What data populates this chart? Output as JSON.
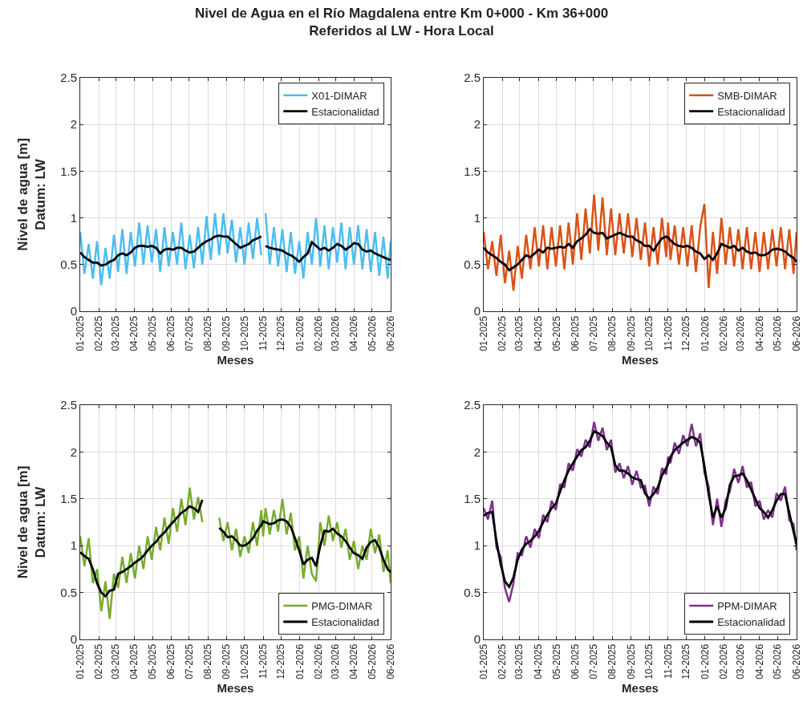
{
  "chart_data": [
    {
      "type": "line",
      "title": "Nivel de Agua en el Río Magdalena entre Km 0+000 - Km 36+000",
      "subtitle": "Referidos al LW - Hora Local",
      "xlabel": "Meses",
      "ylabel": "Nivel de agua [m]\nDatum: LW",
      "legend": "top right",
      "grid": true,
      "line_style": "solid",
      "xlim": [
        "2025-01-01",
        "2026-06-01"
      ],
      "ylim": [
        0,
        2.5
      ],
      "yticks": [
        0,
        0.5,
        1,
        1.5,
        2,
        2.5
      ],
      "xticks": [
        {
          "value": "2025-01-01",
          "label": "01-2025"
        },
        {
          "value": "2025-02-01",
          "label": "02-2025"
        },
        {
          "value": "2025-03-01",
          "label": "03-2025"
        },
        {
          "value": "2025-04-01",
          "label": "04-2025"
        },
        {
          "value": "2025-05-01",
          "label": "05-2025"
        },
        {
          "value": "2025-06-01",
          "label": "06-2025"
        },
        {
          "value": "2025-07-01",
          "label": "07-2025"
        },
        {
          "value": "2025-08-01",
          "label": "08-2025"
        },
        {
          "value": "2025-09-01",
          "label": "09-2025"
        },
        {
          "value": "2025-10-01",
          "label": "10-2025"
        },
        {
          "value": "2025-11-01",
          "label": "11-2025"
        },
        {
          "value": "2025-12-01",
          "label": "12-2025"
        },
        {
          "value": "2026-01-01",
          "label": "01-2026"
        },
        {
          "value": "2026-02-01",
          "label": "02-2026"
        },
        {
          "value": "2026-03-01",
          "label": "03-2026"
        },
        {
          "value": "2026-04-01",
          "label": "04-2026"
        },
        {
          "value": "2026-05-01",
          "label": "05-2026"
        },
        {
          "value": "2026-06-01",
          "label": "06-2026"
        }
      ],
      "x": [
        "2025-01-01",
        "2025-01-08",
        "2025-01-15",
        "2025-01-22",
        "2025-01-29",
        "2025-02-05",
        "2025-02-12",
        "2025-02-19",
        "2025-02-26",
        "2025-03-05",
        "2025-03-12",
        "2025-03-19",
        "2025-03-26",
        "2025-04-02",
        "2025-04-09",
        "2025-04-16",
        "2025-04-23",
        "2025-04-30",
        "2025-05-07",
        "2025-05-14",
        "2025-05-21",
        "2025-05-28",
        "2025-06-04",
        "2025-06-11",
        "2025-06-18",
        "2025-06-25",
        "2025-07-02",
        "2025-07-09",
        "2025-07-16",
        "2025-07-23",
        "2025-07-30",
        "2025-08-06",
        "2025-08-13",
        "2025-08-20",
        "2025-08-27",
        "2025-09-03",
        "2025-09-10",
        "2025-09-17",
        "2025-09-24",
        "2025-10-01",
        "2025-10-08",
        "2025-10-15",
        "2025-10-22",
        "2025-10-29",
        "2025-11-01",
        "2025-11-05",
        "2025-11-12",
        "2025-11-19",
        "2025-11-26",
        "2025-12-03",
        "2025-12-10",
        "2025-12-17",
        "2025-12-24",
        "2025-12-31",
        "2026-01-07",
        "2026-01-14",
        "2026-01-21",
        "2026-01-28",
        "2026-02-04",
        "2026-02-11",
        "2026-02-18",
        "2026-02-25",
        "2026-03-04",
        "2026-03-11",
        "2026-03-18",
        "2026-03-25",
        "2026-04-01",
        "2026-04-08",
        "2026-04-15",
        "2026-04-22",
        "2026-04-29",
        "2026-05-06",
        "2026-05-13",
        "2026-05-20",
        "2026-05-27",
        "2026-06-01"
      ],
      "series": [
        {
          "name": "X01-DIMAR",
          "color": "#4dbeee",
          "values": [
            0.85,
            0.4,
            0.72,
            0.35,
            0.75,
            0.28,
            0.68,
            0.35,
            0.82,
            0.42,
            0.88,
            0.4,
            0.85,
            0.48,
            0.95,
            0.5,
            0.92,
            0.52,
            0.88,
            0.42,
            0.9,
            0.48,
            0.85,
            0.5,
            0.95,
            0.45,
            0.82,
            0.46,
            0.9,
            0.5,
            1.02,
            0.55,
            1.05,
            0.6,
            1.05,
            0.62,
            0.98,
            0.52,
            0.9,
            0.5,
            0.95,
            0.56,
            1.0,
            0.6,
            null,
            1.05,
            0.5,
            0.9,
            0.48,
            0.88,
            0.42,
            0.85,
            0.4,
            0.75,
            0.35,
            0.85,
            0.5,
            1.0,
            0.48,
            0.92,
            0.45,
            0.9,
            0.52,
            0.95,
            0.45,
            0.9,
            0.5,
            0.92,
            0.45,
            0.88,
            0.42,
            0.85,
            0.38,
            0.8,
            0.35,
            0.75
          ]
        },
        {
          "name": "Estacionalidad",
          "color": "#000000",
          "values": [
            0.63,
            0.58,
            0.55,
            0.52,
            0.52,
            0.49,
            0.5,
            0.53,
            0.55,
            0.6,
            0.62,
            0.6,
            0.63,
            0.68,
            0.7,
            0.7,
            0.69,
            0.7,
            0.68,
            0.62,
            0.66,
            0.67,
            0.66,
            0.68,
            0.68,
            0.65,
            0.63,
            0.64,
            0.68,
            0.72,
            0.75,
            0.77,
            0.8,
            0.81,
            0.8,
            0.8,
            0.76,
            0.72,
            0.68,
            0.7,
            0.72,
            0.76,
            0.78,
            0.8,
            null,
            0.7,
            0.68,
            0.67,
            0.66,
            0.65,
            0.62,
            0.6,
            0.57,
            0.53,
            0.58,
            0.62,
            0.74,
            0.7,
            0.66,
            0.68,
            0.65,
            0.68,
            0.72,
            0.7,
            0.66,
            0.69,
            0.73,
            0.72,
            0.66,
            0.64,
            0.65,
            0.62,
            0.6,
            0.58,
            0.56,
            0.55
          ]
        }
      ]
    },
    {
      "type": "line",
      "xlabel": "Meses",
      "legend": "top right",
      "grid": true,
      "line_style": "solid",
      "xlim": [
        "2025-01-01",
        "2026-06-01"
      ],
      "ylim": [
        0,
        2.5
      ],
      "yticks": [
        0,
        0.5,
        1,
        1.5,
        2,
        2.5
      ],
      "xticks": [
        {
          "value": "2025-01-01",
          "label": "01-2025"
        },
        {
          "value": "2025-02-01",
          "label": "02-2025"
        },
        {
          "value": "2025-03-01",
          "label": "03-2025"
        },
        {
          "value": "2025-04-01",
          "label": "04-2025"
        },
        {
          "value": "2025-05-01",
          "label": "05-2025"
        },
        {
          "value": "2025-06-01",
          "label": "06-2025"
        },
        {
          "value": "2025-07-01",
          "label": "07-2025"
        },
        {
          "value": "2025-08-01",
          "label": "08-2025"
        },
        {
          "value": "2025-09-01",
          "label": "09-2025"
        },
        {
          "value": "2025-10-01",
          "label": "10-2025"
        },
        {
          "value": "2025-11-01",
          "label": "11-2025"
        },
        {
          "value": "2025-12-01",
          "label": "12-2025"
        },
        {
          "value": "2026-01-01",
          "label": "01-2026"
        },
        {
          "value": "2026-02-01",
          "label": "02-2026"
        },
        {
          "value": "2026-03-01",
          "label": "03-2026"
        },
        {
          "value": "2026-04-01",
          "label": "04-2026"
        },
        {
          "value": "2026-05-01",
          "label": "05-2026"
        },
        {
          "value": "2026-06-01",
          "label": "06-2026"
        }
      ],
      "x": [
        "2025-01-01",
        "2025-01-08",
        "2025-01-15",
        "2025-01-22",
        "2025-01-29",
        "2025-02-05",
        "2025-02-12",
        "2025-02-19",
        "2025-02-26",
        "2025-03-05",
        "2025-03-12",
        "2025-03-19",
        "2025-03-26",
        "2025-04-02",
        "2025-04-09",
        "2025-04-16",
        "2025-04-23",
        "2025-04-30",
        "2025-05-07",
        "2025-05-14",
        "2025-05-21",
        "2025-05-28",
        "2025-06-04",
        "2025-06-11",
        "2025-06-18",
        "2025-06-25",
        "2025-07-02",
        "2025-07-09",
        "2025-07-16",
        "2025-07-23",
        "2025-07-30",
        "2025-08-06",
        "2025-08-13",
        "2025-08-20",
        "2025-08-27",
        "2025-09-03",
        "2025-09-10",
        "2025-09-17",
        "2025-09-24",
        "2025-10-01",
        "2025-10-08",
        "2025-10-15",
        "2025-10-22",
        "2025-10-29",
        "2025-11-01",
        "2025-11-05",
        "2025-11-12",
        "2025-11-19",
        "2025-11-26",
        "2025-12-03",
        "2025-12-10",
        "2025-12-17",
        "2025-12-24",
        "2025-12-31",
        "2026-01-07",
        "2026-01-14",
        "2026-01-21",
        "2026-01-28",
        "2026-02-04",
        "2026-02-11",
        "2026-02-18",
        "2026-02-25",
        "2026-03-04",
        "2026-03-11",
        "2026-03-18",
        "2026-03-25",
        "2026-04-01",
        "2026-04-08",
        "2026-04-15",
        "2026-04-22",
        "2026-04-29",
        "2026-05-06",
        "2026-05-13",
        "2026-05-20",
        "2026-05-27",
        "2026-06-01"
      ],
      "series": [
        {
          "name": "SMB-DIMAR",
          "color": "#d95319",
          "values": [
            0.85,
            0.45,
            0.75,
            0.38,
            0.82,
            0.3,
            0.65,
            0.22,
            0.7,
            0.35,
            0.82,
            0.45,
            0.9,
            0.48,
            0.92,
            0.45,
            0.9,
            0.48,
            0.92,
            0.45,
            0.95,
            0.5,
            1.05,
            0.55,
            1.1,
            0.62,
            1.25,
            0.65,
            1.22,
            0.6,
            1.1,
            0.6,
            1.05,
            0.62,
            1.05,
            0.58,
            1.0,
            0.55,
            0.95,
            0.48,
            0.9,
            0.5,
            1.0,
            0.58,
            0.95,
            0.55,
            0.92,
            0.5,
            0.9,
            0.48,
            0.92,
            0.42,
            0.9,
            1.15,
            0.25,
            0.85,
            0.4,
            1.0,
            0.5,
            0.9,
            0.48,
            0.88,
            0.45,
            0.9,
            0.45,
            0.85,
            0.42,
            0.85,
            0.45,
            0.88,
            0.48,
            0.9,
            0.45,
            0.88,
            0.4,
            0.85
          ]
        },
        {
          "name": "Estacionalidad",
          "color": "#000000",
          "values": [
            0.68,
            0.63,
            0.6,
            0.57,
            0.53,
            0.5,
            0.44,
            0.47,
            0.5,
            0.55,
            0.6,
            0.58,
            0.62,
            0.66,
            0.63,
            0.68,
            0.67,
            0.68,
            0.69,
            0.68,
            0.72,
            0.68,
            0.75,
            0.78,
            0.82,
            0.88,
            0.84,
            0.83,
            0.84,
            0.78,
            0.8,
            0.82,
            0.84,
            0.82,
            0.8,
            0.8,
            0.76,
            0.74,
            0.7,
            0.7,
            0.65,
            0.72,
            0.78,
            0.8,
            0.79,
            0.76,
            0.72,
            0.7,
            0.69,
            0.7,
            0.68,
            0.64,
            0.62,
            0.56,
            0.6,
            0.55,
            0.62,
            0.72,
            0.7,
            0.68,
            0.7,
            0.65,
            0.68,
            0.64,
            0.62,
            0.63,
            0.6,
            0.6,
            0.62,
            0.66,
            0.67,
            0.66,
            0.64,
            0.6,
            0.57,
            0.53
          ]
        }
      ]
    },
    {
      "type": "line",
      "xlabel": "Meses",
      "ylabel": "Nivel de agua [m]\nDatum: LW",
      "legend": "bottom right",
      "grid": true,
      "line_style": "solid",
      "xlim": [
        "2025-01-01",
        "2026-06-01"
      ],
      "ylim": [
        0,
        2.5
      ],
      "yticks": [
        0,
        0.5,
        1,
        1.5,
        2,
        2.5
      ],
      "xticks": [
        {
          "value": "2025-01-01",
          "label": "01-2025"
        },
        {
          "value": "2025-02-01",
          "label": "02-2025"
        },
        {
          "value": "2025-03-01",
          "label": "03-2025"
        },
        {
          "value": "2025-04-01",
          "label": "04-2025"
        },
        {
          "value": "2025-05-01",
          "label": "05-2025"
        },
        {
          "value": "2025-06-01",
          "label": "06-2025"
        },
        {
          "value": "2025-07-01",
          "label": "07-2025"
        },
        {
          "value": "2025-08-01",
          "label": "08-2025"
        },
        {
          "value": "2025-09-01",
          "label": "09-2025"
        },
        {
          "value": "2025-10-01",
          "label": "10-2025"
        },
        {
          "value": "2025-11-01",
          "label": "11-2025"
        },
        {
          "value": "2025-12-01",
          "label": "12-2025"
        },
        {
          "value": "2026-01-01",
          "label": "01-2026"
        },
        {
          "value": "2026-02-01",
          "label": "02-2026"
        },
        {
          "value": "2026-03-01",
          "label": "03-2026"
        },
        {
          "value": "2026-04-01",
          "label": "04-2026"
        },
        {
          "value": "2026-05-01",
          "label": "05-2026"
        },
        {
          "value": "2026-06-01",
          "label": "06-2026"
        }
      ],
      "x": [
        "2025-01-01",
        "2025-01-08",
        "2025-01-15",
        "2025-01-22",
        "2025-01-29",
        "2025-02-05",
        "2025-02-12",
        "2025-02-19",
        "2025-02-26",
        "2025-03-05",
        "2025-03-12",
        "2025-03-19",
        "2025-03-26",
        "2025-04-02",
        "2025-04-09",
        "2025-04-16",
        "2025-04-23",
        "2025-04-30",
        "2025-05-07",
        "2025-05-14",
        "2025-05-21",
        "2025-05-28",
        "2025-06-04",
        "2025-06-11",
        "2025-06-18",
        "2025-06-25",
        "2025-07-02",
        "2025-07-09",
        "2025-07-16",
        "2025-07-23",
        "2025-07-30",
        "2025-08-06",
        "2025-08-13",
        "2025-08-20",
        "2025-08-27",
        "2025-09-03",
        "2025-09-10",
        "2025-09-17",
        "2025-09-24",
        "2025-10-01",
        "2025-10-08",
        "2025-10-15",
        "2025-10-22",
        "2025-10-29",
        "2025-11-01",
        "2025-11-05",
        "2025-11-12",
        "2025-11-19",
        "2025-11-26",
        "2025-12-03",
        "2025-12-10",
        "2025-12-17",
        "2025-12-24",
        "2025-12-31",
        "2026-01-07",
        "2026-01-14",
        "2026-01-21",
        "2026-01-28",
        "2026-02-04",
        "2026-02-11",
        "2026-02-18",
        "2026-02-25",
        "2026-03-04",
        "2026-03-11",
        "2026-03-18",
        "2026-03-25",
        "2026-04-01",
        "2026-04-08",
        "2026-04-15",
        "2026-04-22",
        "2026-04-29",
        "2026-05-06",
        "2026-05-13",
        "2026-05-20",
        "2026-05-27",
        "2026-06-01"
      ],
      "series": [
        {
          "name": "PMG-DIMAR",
          "color": "#77ac30",
          "values": [
            1.1,
            0.78,
            1.08,
            0.6,
            0.75,
            0.3,
            0.62,
            0.22,
            0.7,
            0.55,
            0.88,
            0.6,
            0.92,
            0.65,
            1.0,
            0.75,
            1.1,
            0.85,
            1.2,
            0.95,
            1.3,
            1.02,
            1.4,
            1.15,
            1.5,
            1.22,
            1.62,
            1.28,
            1.52,
            1.25,
            null,
            null,
            null,
            1.3,
            1.05,
            1.25,
            0.95,
            1.18,
            0.88,
            1.1,
            0.92,
            1.25,
            1.0,
            1.38,
            1.1,
            1.4,
            1.12,
            1.38,
            1.15,
            1.5,
            1.12,
            1.35,
            0.95,
            1.1,
            0.65,
            1.0,
            0.7,
            0.62,
            1.25,
            1.0,
            1.32,
            1.05,
            1.25,
            0.98,
            1.18,
            0.85,
            1.05,
            0.75,
            1.0,
            0.85,
            1.18,
            0.92,
            1.12,
            0.72,
            0.95,
            0.6
          ]
        },
        {
          "name": "Estacionalidad",
          "color": "#000000",
          "values": [
            0.93,
            0.89,
            0.86,
            0.75,
            0.6,
            0.5,
            0.46,
            0.52,
            0.53,
            0.7,
            0.72,
            0.75,
            0.78,
            0.82,
            0.85,
            0.89,
            0.95,
            1.0,
            1.04,
            1.1,
            1.14,
            1.2,
            1.25,
            1.3,
            1.35,
            1.38,
            1.42,
            1.4,
            1.36,
            1.49,
            null,
            null,
            null,
            1.19,
            1.15,
            1.09,
            1.1,
            1.06,
            1.0,
            1.0,
            1.03,
            1.08,
            1.16,
            1.22,
            1.26,
            1.25,
            1.23,
            1.24,
            1.27,
            1.28,
            1.26,
            1.2,
            1.08,
            0.95,
            0.8,
            0.85,
            0.87,
            0.78,
            1.0,
            1.16,
            1.15,
            1.18,
            1.13,
            1.1,
            1.05,
            0.98,
            0.92,
            0.9,
            0.86,
            0.98,
            1.04,
            1.06,
            0.98,
            0.85,
            0.75,
            0.72
          ]
        }
      ]
    },
    {
      "type": "line",
      "xlabel": "Meses",
      "legend": "bottom right",
      "grid": true,
      "line_style": "solid",
      "xlim": [
        "2025-01-01",
        "2026-06-01"
      ],
      "ylim": [
        0,
        2.5
      ],
      "yticks": [
        0,
        0.5,
        1,
        1.5,
        2,
        2.5
      ],
      "xticks": [
        {
          "value": "2025-01-01",
          "label": "01-2025"
        },
        {
          "value": "2025-02-01",
          "label": "02-2025"
        },
        {
          "value": "2025-03-01",
          "label": "03-2025"
        },
        {
          "value": "2025-04-01",
          "label": "04-2025"
        },
        {
          "value": "2025-05-01",
          "label": "05-2025"
        },
        {
          "value": "2025-06-01",
          "label": "06-2025"
        },
        {
          "value": "2025-07-01",
          "label": "07-2025"
        },
        {
          "value": "2025-08-01",
          "label": "08-2025"
        },
        {
          "value": "2025-09-01",
          "label": "09-2025"
        },
        {
          "value": "2025-10-01",
          "label": "10-2025"
        },
        {
          "value": "2025-11-01",
          "label": "11-2025"
        },
        {
          "value": "2025-12-01",
          "label": "12-2025"
        },
        {
          "value": "2026-01-01",
          "label": "01-2026"
        },
        {
          "value": "2026-02-01",
          "label": "02-2026"
        },
        {
          "value": "2026-03-01",
          "label": "03-2026"
        },
        {
          "value": "2026-04-01",
          "label": "04-2026"
        },
        {
          "value": "2026-05-01",
          "label": "05-2026"
        },
        {
          "value": "2026-06-01",
          "label": "06-2026"
        }
      ],
      "x": [
        "2025-01-01",
        "2025-01-08",
        "2025-01-15",
        "2025-01-22",
        "2025-01-29",
        "2025-02-05",
        "2025-02-12",
        "2025-02-19",
        "2025-02-26",
        "2025-03-05",
        "2025-03-12",
        "2025-03-19",
        "2025-03-26",
        "2025-04-02",
        "2025-04-09",
        "2025-04-16",
        "2025-04-23",
        "2025-04-30",
        "2025-05-07",
        "2025-05-14",
        "2025-05-21",
        "2025-05-28",
        "2025-06-04",
        "2025-06-11",
        "2025-06-18",
        "2025-06-25",
        "2025-07-02",
        "2025-07-09",
        "2025-07-16",
        "2025-07-23",
        "2025-07-30",
        "2025-08-06",
        "2025-08-13",
        "2025-08-20",
        "2025-08-27",
        "2025-09-03",
        "2025-09-10",
        "2025-09-17",
        "2025-09-24",
        "2025-10-01",
        "2025-10-08",
        "2025-10-15",
        "2025-10-22",
        "2025-10-29",
        "2025-11-01",
        "2025-11-05",
        "2025-11-12",
        "2025-11-19",
        "2025-11-26",
        "2025-12-03",
        "2025-12-10",
        "2025-12-17",
        "2025-12-24",
        "2025-12-31",
        "2026-01-07",
        "2026-01-14",
        "2026-01-21",
        "2026-01-28",
        "2026-02-04",
        "2026-02-11",
        "2026-02-18",
        "2026-02-25",
        "2026-03-04",
        "2026-03-11",
        "2026-03-18",
        "2026-03-25",
        "2026-04-01",
        "2026-04-08",
        "2026-04-15",
        "2026-04-22",
        "2026-04-29",
        "2026-05-06",
        "2026-05-13",
        "2026-05-20",
        "2026-05-27",
        "2026-06-01"
      ],
      "series": [
        {
          "name": "PPM-DIMAR",
          "color": "#7e2f8e",
          "values": [
            1.4,
            1.28,
            1.48,
            0.98,
            0.88,
            0.55,
            0.4,
            0.6,
            0.92,
            0.9,
            1.1,
            0.98,
            1.18,
            1.08,
            1.33,
            1.25,
            1.48,
            1.38,
            1.66,
            1.62,
            1.88,
            1.8,
            2.03,
            1.95,
            2.13,
            2.05,
            2.32,
            2.12,
            2.26,
            2.02,
            2.13,
            1.78,
            1.88,
            1.72,
            1.85,
            1.65,
            1.8,
            1.62,
            1.64,
            1.42,
            1.63,
            1.55,
            1.83,
            1.76,
            1.95,
            1.88,
            2.1,
            1.98,
            2.18,
            2.06,
            2.3,
            2.06,
            2.2,
            1.78,
            1.63,
            1.22,
            1.5,
            1.2,
            1.48,
            1.58,
            1.82,
            1.67,
            1.85,
            1.62,
            1.68,
            1.42,
            1.48,
            1.28,
            1.38,
            1.3,
            1.56,
            1.48,
            1.63,
            1.27,
            1.23,
            0.95
          ]
        },
        {
          "name": "Estacionalidad",
          "color": "#000000",
          "values": [
            1.32,
            1.35,
            1.36,
            1.05,
            0.8,
            0.62,
            0.56,
            0.66,
            0.85,
            0.96,
            1.02,
            1.05,
            1.1,
            1.16,
            1.25,
            1.33,
            1.4,
            1.45,
            1.58,
            1.7,
            1.8,
            1.88,
            1.95,
            2.02,
            2.05,
            2.12,
            2.22,
            2.2,
            2.17,
            2.1,
            2.05,
            1.86,
            1.8,
            1.8,
            1.77,
            1.73,
            1.71,
            1.7,
            1.56,
            1.5,
            1.55,
            1.62,
            1.75,
            1.83,
            1.87,
            1.95,
            2.02,
            2.06,
            2.1,
            2.13,
            2.16,
            2.14,
            2.1,
            1.85,
            1.55,
            1.3,
            1.42,
            1.3,
            1.4,
            1.65,
            1.74,
            1.75,
            1.77,
            1.7,
            1.6,
            1.5,
            1.4,
            1.36,
            1.3,
            1.38,
            1.48,
            1.55,
            1.55,
            1.35,
            1.15,
            1.02
          ]
        }
      ]
    }
  ]
}
